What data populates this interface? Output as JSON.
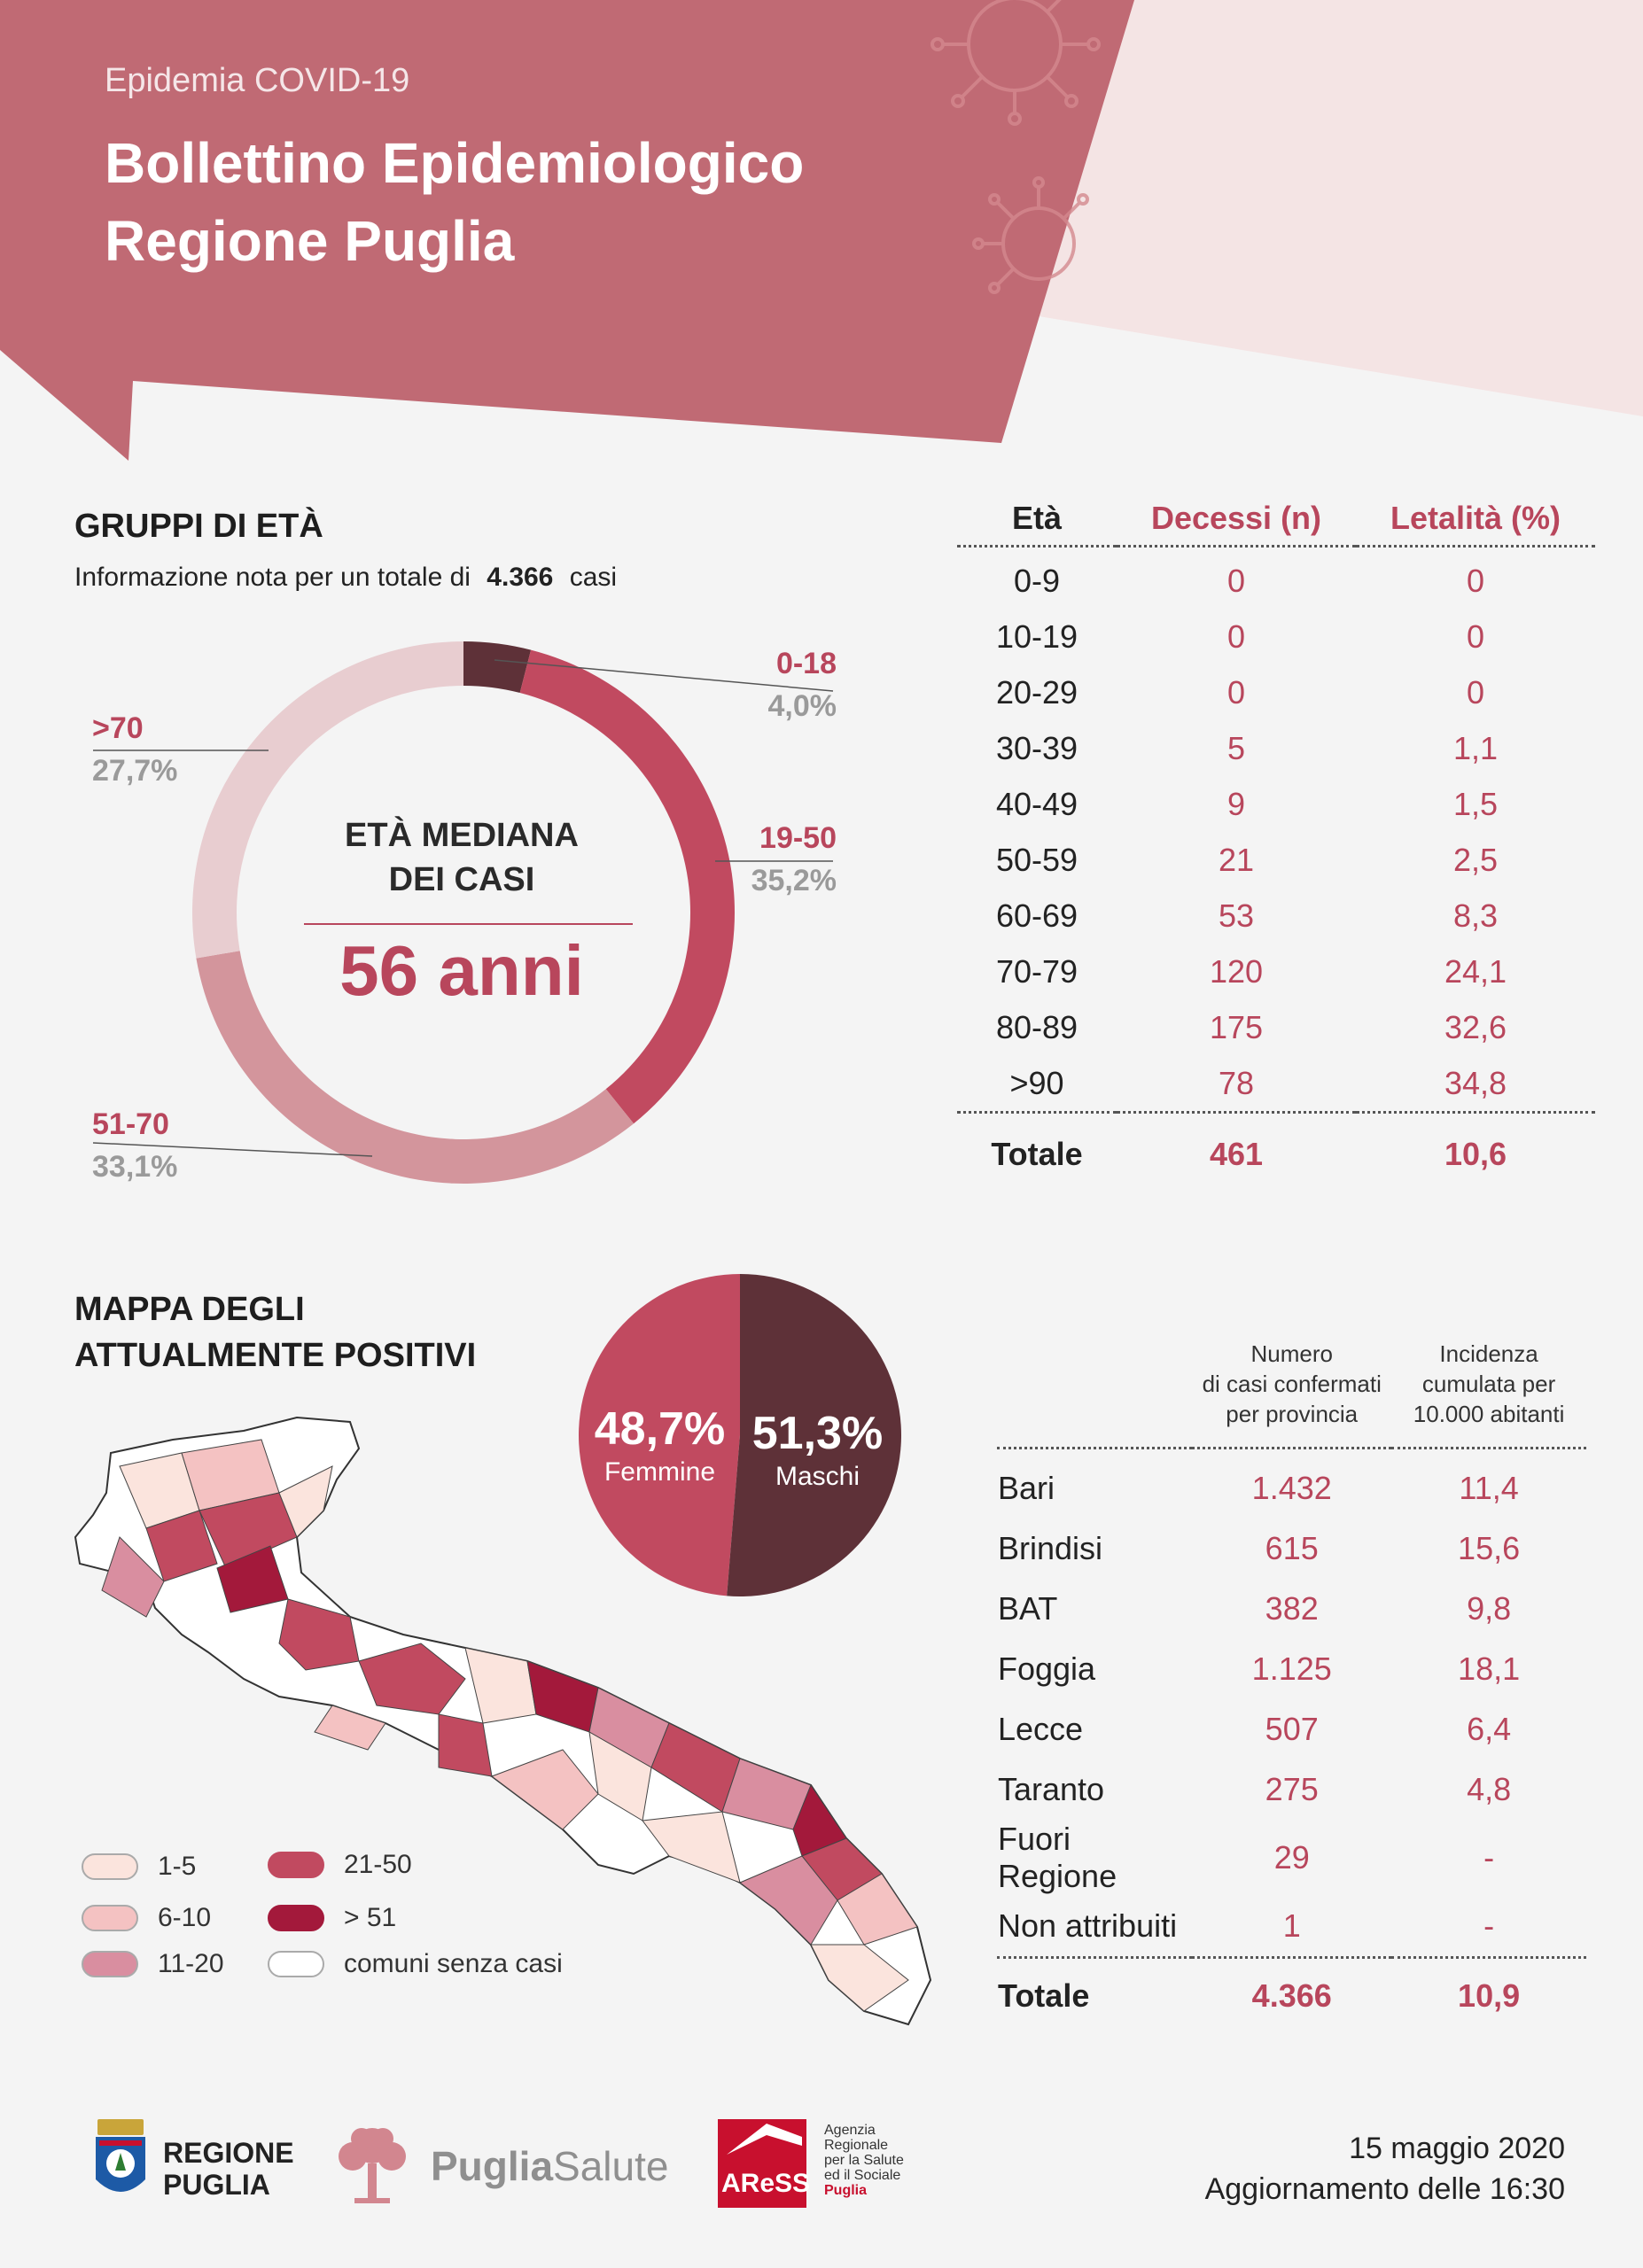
{
  "header": {
    "supertitle": "Epidemia COVID-19",
    "title_line1": "Bollettino Epidemiologico",
    "title_line2": "Regione Puglia"
  },
  "colors": {
    "header_red": "#c06a74",
    "header_light": "#f4e4e4",
    "accent": "#b8465c",
    "dark": "#5e3138",
    "seg_19_50": "#c14a60",
    "seg_51_70": "#d3959c",
    "seg_70": "#e8cdd0",
    "seg_0_18": "#5e3138"
  },
  "age_section": {
    "title": "GRUPPI DI ETÀ",
    "info_prefix": "Informazione nota per un totale di",
    "info_total": "4.366",
    "info_suffix": "casi",
    "center_line1": "ETÀ MEDIANA",
    "center_line2": "DEI CASI",
    "median_value": "56 anni"
  },
  "chart_data": [
    {
      "type": "pie",
      "title": "GRUPPI DI ETÀ",
      "categories": [
        "0-18",
        "19-50",
        "51-70",
        ">70"
      ],
      "values": [
        4.0,
        35.2,
        33.1,
        27.7
      ],
      "labels": [
        "4,0%",
        "35,2%",
        "33,1%",
        "27,7%"
      ],
      "colors": [
        "#5e3138",
        "#c14a60",
        "#d3959c",
        "#e8cdd0"
      ]
    },
    {
      "type": "pie",
      "categories": [
        "Femmine",
        "Maschi"
      ],
      "values": [
        48.7,
        51.3
      ],
      "labels": [
        "48,7%",
        "51,3%"
      ],
      "colors": [
        "#c14a60",
        "#5e3138"
      ]
    }
  ],
  "age_table": {
    "headers": [
      "Età",
      "Decessi (n)",
      "Letalità (%)"
    ],
    "rows": [
      [
        "0-9",
        "0",
        "0"
      ],
      [
        "10-19",
        "0",
        "0"
      ],
      [
        "20-29",
        "0",
        "0"
      ],
      [
        "30-39",
        "5",
        "1,1"
      ],
      [
        "40-49",
        "9",
        "1,5"
      ],
      [
        "50-59",
        "21",
        "2,5"
      ],
      [
        "60-69",
        "53",
        "8,3"
      ],
      [
        "70-79",
        "120",
        "24,1"
      ],
      [
        "80-89",
        "175",
        "32,6"
      ],
      [
        ">90",
        "78",
        "34,8"
      ]
    ],
    "total": [
      "Totale",
      "461",
      "10,6"
    ]
  },
  "map_section": {
    "title_line1": "MAPPA DEGLI",
    "title_line2": "ATTUALMENTE POSITIVI",
    "legend": [
      {
        "label": "1-5",
        "color": "#fbe4dd"
      },
      {
        "label": "6-10",
        "color": "#f4c2c2"
      },
      {
        "label": "11-20",
        "color": "#d98ea0"
      },
      {
        "label": "21-50",
        "color": "#c14a60"
      },
      {
        "label": "> 51",
        "color": "#a3193b"
      },
      {
        "label": "comuni senza casi",
        "color": "#ffffff"
      }
    ]
  },
  "sex_pie": {
    "f_value": "48,7%",
    "f_label": "Femmine",
    "m_value": "51,3%",
    "m_label": "Maschi"
  },
  "province_table": {
    "col1_header": "Numero\ndi casi confermati\nper provincia",
    "col2_header": "Incidenza\ncumulata per\n10.000 abitanti",
    "rows": [
      [
        "Bari",
        "1.432",
        "11,4"
      ],
      [
        "Brindisi",
        "615",
        "15,6"
      ],
      [
        "BAT",
        "382",
        "9,8"
      ],
      [
        "Foggia",
        "1.125",
        "18,1"
      ],
      [
        "Lecce",
        "507",
        "6,4"
      ],
      [
        "Taranto",
        "275",
        "4,8"
      ],
      [
        "Fuori Regione",
        "29",
        "-"
      ],
      [
        "Non attribuiti",
        "1",
        "-"
      ]
    ],
    "total": [
      "Totale",
      "4.366",
      "10,9"
    ]
  },
  "footer": {
    "logo1_line1": "REGIONE",
    "logo1_line2": "PUGLIA",
    "logo2_a": "Puglia",
    "logo2_b": "Salute",
    "logo3_mark": "AReSS",
    "logo3_lines": [
      "Agenzia",
      "Regionale",
      "per la Salute",
      "ed il Sociale",
      "Puglia"
    ],
    "date": "15 maggio 2020",
    "update": "Aggiornamento delle 16:30"
  }
}
